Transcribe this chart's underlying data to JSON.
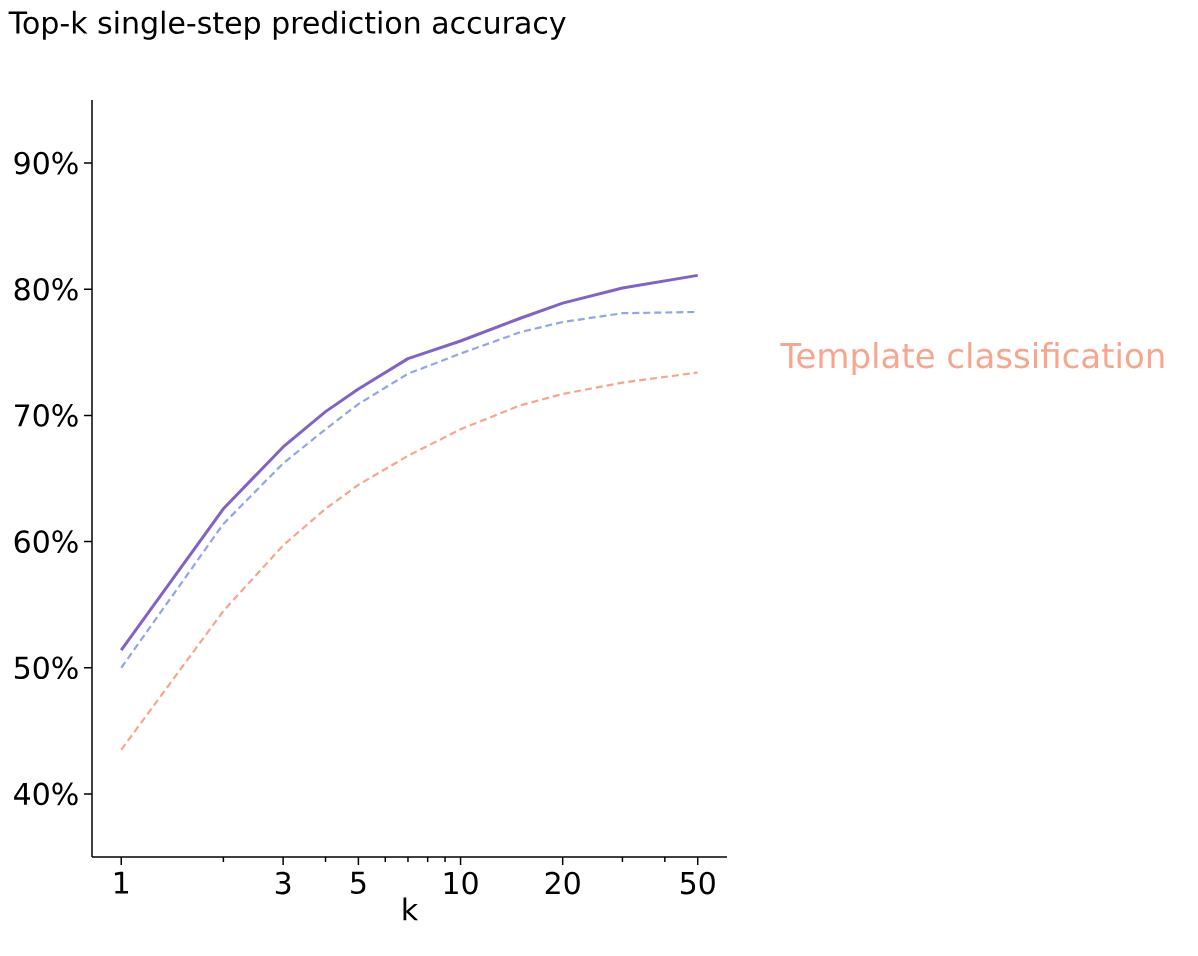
{
  "chart_data": {
    "type": "line",
    "title": "Top-k single-step prediction accuracy",
    "xlabel": "k",
    "x": [
      1,
      2,
      3,
      4,
      5,
      7,
      10,
      15,
      20,
      30,
      50
    ],
    "log": "x",
    "xlim": [
      0.82,
      61
    ],
    "ylim": [
      35,
      95
    ],
    "xticks": [
      1,
      {
        "value": 2,
        "label": null
      },
      3,
      {
        "value": 4,
        "label": null
      },
      5,
      {
        "value": 6,
        "label": null
      },
      {
        "value": 7,
        "label": null
      },
      {
        "value": 8,
        "label": null
      },
      {
        "value": 9,
        "label": null
      },
      10,
      20,
      {
        "value": 30,
        "label": null
      },
      {
        "value": 40,
        "label": null
      },
      50
    ],
    "yticks": [
      {
        "value": 40,
        "label": "40%"
      },
      {
        "value": 50,
        "label": "50%"
      },
      {
        "value": 60,
        "label": "60%"
      },
      {
        "value": 70,
        "label": "70%"
      },
      {
        "value": 80,
        "label": "80%"
      },
      {
        "value": 90,
        "label": "90%"
      }
    ],
    "series": [
      {
        "color": "#8062c8",
        "line_style": "solid",
        "values": [
          51.4,
          62.6,
          67.5,
          70.3,
          72.1,
          74.5,
          75.9,
          77.7,
          78.9,
          80.1,
          81.1
        ]
      },
      {
        "color": "#8fa6e8",
        "line_style": "dashed",
        "values": [
          50.0,
          61.4,
          66.2,
          68.9,
          70.9,
          73.3,
          74.9,
          76.6,
          77.4,
          78.1,
          78.2
        ]
      },
      {
        "name": "Template classification",
        "color": "#f9a48c",
        "line_style": "dashed",
        "values": [
          43.5,
          54.5,
          59.7,
          62.6,
          64.5,
          66.8,
          68.9,
          70.8,
          71.7,
          72.6,
          73.4
        ]
      }
    ]
  }
}
